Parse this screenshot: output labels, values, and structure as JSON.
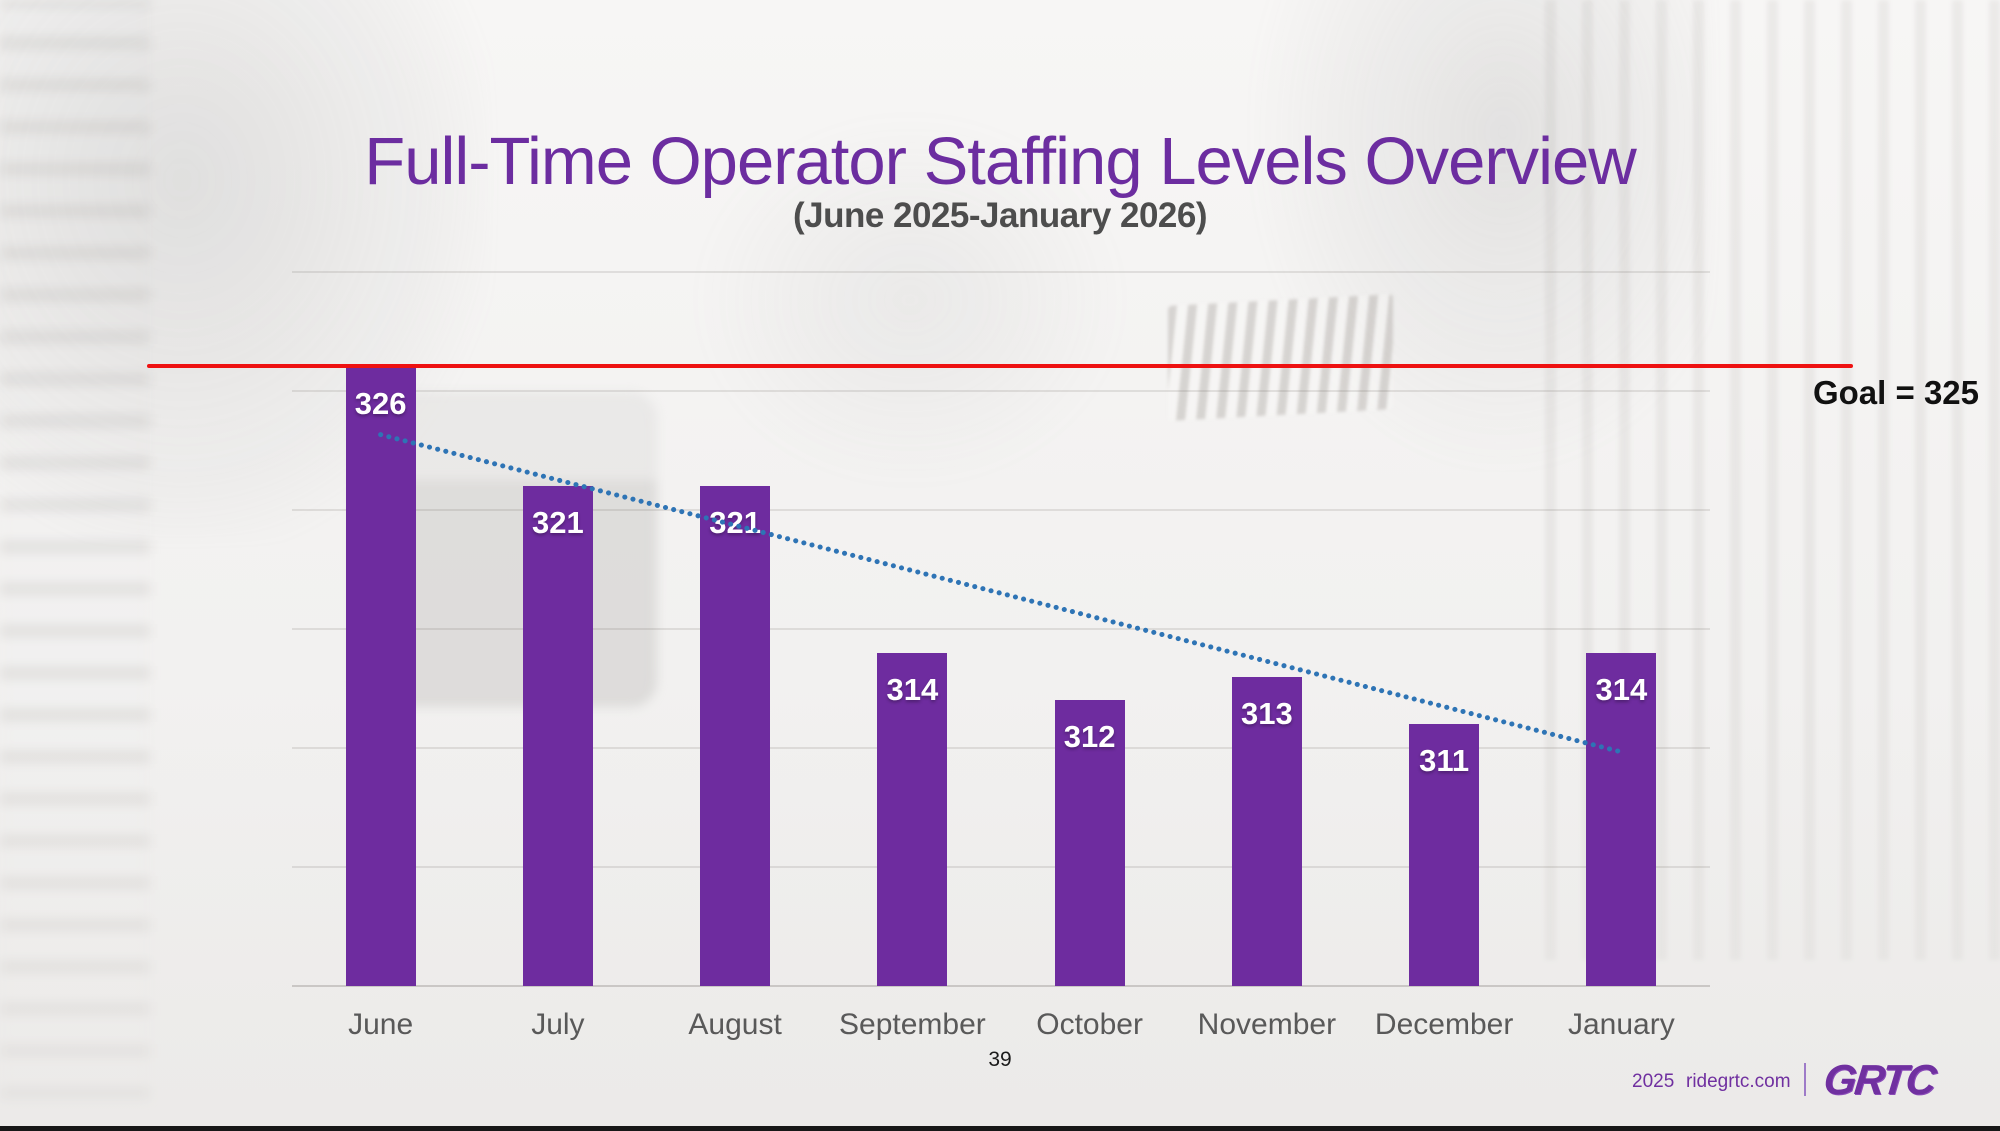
{
  "slide": {
    "title": "Full-Time Operator Staffing Levels Overview",
    "subtitle": "(June 2025-January 2026)",
    "page_number": "39"
  },
  "footer": {
    "year": "2025",
    "website": "ridegrtc.com",
    "logo": "GRTC"
  },
  "chart_data": {
    "type": "bar",
    "title": "Full-Time Operator Staffing Levels Overview",
    "subtitle": "(June 2025-January 2026)",
    "categories": [
      "June",
      "July",
      "August",
      "September",
      "October",
      "November",
      "December",
      "January"
    ],
    "values": [
      326,
      321,
      321,
      314,
      312,
      313,
      311,
      314
    ],
    "goal_line": {
      "label": "Goal = 325",
      "value": 325
    },
    "trendline": {
      "type": "linear",
      "style": "dotted"
    },
    "ylim": [
      300,
      330
    ],
    "grid": true,
    "gridline_step": 5,
    "legend": "none",
    "xlabel": "",
    "ylabel": "",
    "colors": {
      "bar": "#6E2C9F",
      "goal_line": "#EE1111",
      "trendline": "#2E74B5",
      "value_label": "#FFFFFF",
      "category_label": "#595959",
      "title": "#6C2DA0"
    }
  }
}
